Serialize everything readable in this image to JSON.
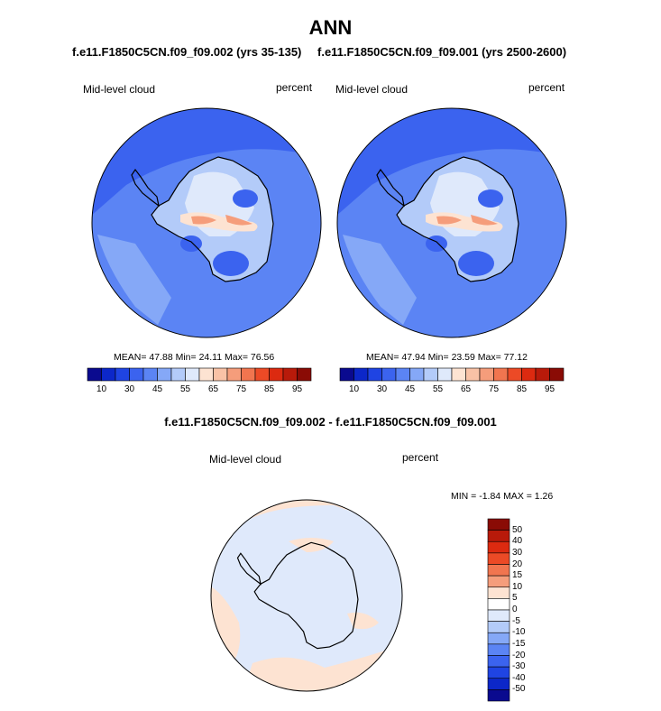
{
  "title": "ANN",
  "panel_left": {
    "case": "f.e11.F1850C5CN.f09_f09.002 (yrs 35-135)",
    "variable": "Mid-level cloud",
    "units": "percent",
    "stats": {
      "mean_label": "MEAN=",
      "mean": "47.88",
      "min_label": "Min=",
      "min": "24.11",
      "max_label": "Max=",
      "max": "76.56"
    }
  },
  "panel_right": {
    "case": "f.e11.F1850C5CN.f09_f09.001 (yrs 2500-2600)",
    "variable": "Mid-level cloud",
    "units": "percent",
    "stats": {
      "mean_label": "MEAN=",
      "mean": "47.94",
      "min_label": "Min=",
      "min": "23.59",
      "max_label": "Max=",
      "max": "77.12"
    }
  },
  "panel_diff": {
    "title": "f.e11.F1850C5CN.f09_f09.002 - f.e11.F1850C5CN.f09_f09.001",
    "variable": "Mid-level cloud",
    "units": "percent",
    "minmax_text": "MIN =  -1.84 MAX =   1.26"
  },
  "colorbar_top": {
    "colors": [
      "#0a0a8f",
      "#0c27c9",
      "#1f44e3",
      "#3b63ef",
      "#5b84f4",
      "#85a8f7",
      "#b3cbf9",
      "#dfe9fb",
      "#fde3d2",
      "#f9c2a6",
      "#f59d7b",
      "#f1754f",
      "#ec4a26",
      "#dc2a10",
      "#b81a0a",
      "#8a0b05"
    ],
    "labels": [
      "10",
      "30",
      "45",
      "55",
      "65",
      "75",
      "85",
      "95"
    ]
  },
  "colorbar_diff": {
    "colors": [
      "#8a0b05",
      "#b81a0a",
      "#dc2a10",
      "#ec4a26",
      "#f1754f",
      "#f59d7b",
      "#fde3d2",
      "#ffffff",
      "#dfe9fb",
      "#b3cbf9",
      "#85a8f7",
      "#5b84f4",
      "#3b63ef",
      "#1f44e3",
      "#0c27c9",
      "#0a0a8f"
    ],
    "labels": [
      "50",
      "40",
      "30",
      "20",
      "15",
      "10",
      "5",
      "0",
      "-5",
      "-10",
      "-15",
      "-20",
      "-30",
      "-40",
      "-50"
    ]
  },
  "map_colors": {
    "ocean_dark": "#3b63ef",
    "ocean_mid": "#5b84f4",
    "ocean_light": "#85a8f7",
    "land_light": "#b3cbf9",
    "land_pale": "#dfe9fb",
    "warm_pale": "#fde3d2",
    "warm_mid": "#f59d7b",
    "diff_pos": "#fde3d2",
    "diff_neg": "#dfe9fb"
  }
}
